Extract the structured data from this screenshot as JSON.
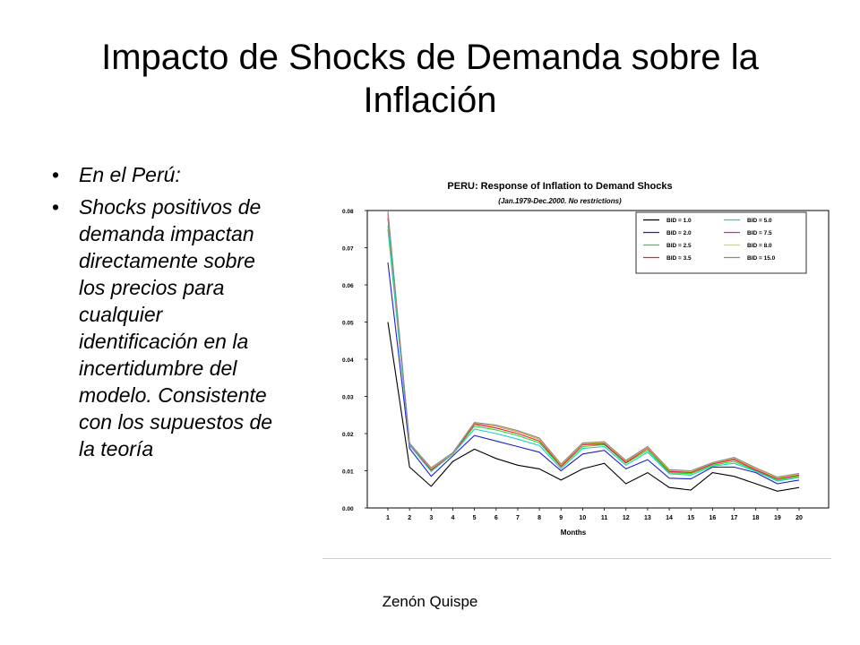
{
  "slide": {
    "title": "Impacto de Shocks de Demanda sobre la Inflación",
    "bullets": [
      "En el Perú:",
      "Shocks positivos de demanda impactan directamente sobre los precios para cualquier identificación en la incertidumbre del modelo. Consistente con los supuestos de la teoría"
    ],
    "footer": "Zenón Quispe"
  },
  "chart_data": {
    "type": "line",
    "title": "PERU: Response of Inflation to Demand Shocks",
    "subtitle": "(Jan.1979-Dec.2000. No restrictions)",
    "xlabel": "Months",
    "ylabel": "",
    "x": [
      1,
      2,
      3,
      4,
      5,
      6,
      7,
      8,
      9,
      10,
      11,
      12,
      13,
      14,
      15,
      16,
      17,
      18,
      19,
      20
    ],
    "ylim": [
      0,
      0.08
    ],
    "yticks": [
      "0.00",
      "0.01",
      "0.02",
      "0.03",
      "0.04",
      "0.05",
      "0.06",
      "0.07",
      "0.08"
    ],
    "grid": false,
    "legend_position": "top-right",
    "series": [
      {
        "name": "BID = 1.0",
        "color": "#000000",
        "values": [
          0.05,
          0.011,
          0.0058,
          0.0125,
          0.0158,
          0.0133,
          0.0115,
          0.0105,
          0.0075,
          0.0105,
          0.012,
          0.0065,
          0.0095,
          0.0055,
          0.0048,
          0.0095,
          0.0085,
          0.0065,
          0.0045,
          0.0055
        ]
      },
      {
        "name": "BID = 2.0",
        "color": "#1f1fcc",
        "values": [
          0.066,
          0.016,
          0.0085,
          0.014,
          0.0195,
          0.018,
          0.0165,
          0.015,
          0.01,
          0.0145,
          0.0155,
          0.0105,
          0.013,
          0.008,
          0.0078,
          0.011,
          0.011,
          0.0095,
          0.0065,
          0.0075
        ]
      },
      {
        "name": "BID = 2.5",
        "color": "#22dd22",
        "values": [
          0.075,
          0.017,
          0.01,
          0.0145,
          0.022,
          0.021,
          0.0195,
          0.0175,
          0.011,
          0.0165,
          0.017,
          0.012,
          0.0155,
          0.0095,
          0.0092,
          0.0115,
          0.0125,
          0.01,
          0.0075,
          0.0085
        ]
      },
      {
        "name": "BID = 3.5",
        "color": "#ee2222",
        "values": [
          0.078,
          0.017,
          0.0102,
          0.0145,
          0.0225,
          0.0215,
          0.02,
          0.018,
          0.0112,
          0.017,
          0.0172,
          0.0122,
          0.016,
          0.0098,
          0.0095,
          0.0118,
          0.013,
          0.0102,
          0.0078,
          0.0088
        ]
      },
      {
        "name": "BID = 5.0",
        "color": "#22cccc",
        "values": [
          0.076,
          0.0168,
          0.0098,
          0.0145,
          0.0212,
          0.02,
          0.0185,
          0.0168,
          0.0105,
          0.016,
          0.0165,
          0.0115,
          0.015,
          0.0092,
          0.0088,
          0.0112,
          0.012,
          0.0098,
          0.0072,
          0.0082
        ]
      },
      {
        "name": "BID = 7.5",
        "color": "#cc22cc",
        "values": [
          0.079,
          0.0172,
          0.0105,
          0.0148,
          0.0228,
          0.022,
          0.0205,
          0.0185,
          0.0115,
          0.0172,
          0.0175,
          0.0125,
          0.0162,
          0.01,
          0.0097,
          0.012,
          0.0133,
          0.0105,
          0.008,
          0.009
        ]
      },
      {
        "name": "BID = 8.0",
        "color": "#dddd22",
        "values": [
          0.0795,
          0.0173,
          0.0106,
          0.0148,
          0.0229,
          0.0221,
          0.0206,
          0.0186,
          0.0116,
          0.0173,
          0.0176,
          0.0126,
          0.0163,
          0.0101,
          0.0098,
          0.0121,
          0.0134,
          0.0106,
          0.0081,
          0.0091
        ]
      },
      {
        "name": "BID = 15.0",
        "color": "#888888",
        "values": [
          0.08,
          0.0174,
          0.0108,
          0.0149,
          0.023,
          0.0223,
          0.0208,
          0.0188,
          0.0118,
          0.0175,
          0.0178,
          0.0128,
          0.0165,
          0.0103,
          0.01,
          0.0122,
          0.0136,
          0.0108,
          0.0083,
          0.0093
        ]
      }
    ]
  }
}
